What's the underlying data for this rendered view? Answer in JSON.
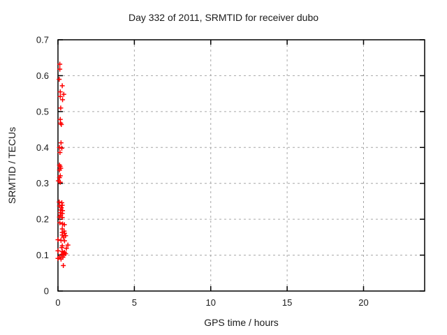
{
  "chart_data": {
    "type": "scatter",
    "title": "Day 332 of 2011, SRMTID for receiver dubo",
    "xlabel": "GPS time / hours",
    "ylabel": "SRMTID / TECUs",
    "xlim": [
      0,
      24
    ],
    "ylim": [
      0,
      0.7
    ],
    "xticks": {
      "values": [
        0,
        5,
        10,
        15,
        20
      ],
      "labels": [
        "0",
        "5",
        "10",
        "15",
        "20"
      ]
    },
    "yticks": {
      "values": [
        0,
        0.1,
        0.2,
        0.3,
        0.4,
        0.5,
        0.6,
        0.7
      ],
      "labels": [
        "0",
        "0.1",
        "0.2",
        "0.3",
        "0.4",
        "0.5",
        "0.6",
        "0.7"
      ]
    },
    "grid": true,
    "legend": "none",
    "marker": {
      "shape": "plus",
      "color": "#ff0000",
      "size": 7
    },
    "series": [
      {
        "name": "SRMTID",
        "points": [
          [
            0.12,
            0.632
          ],
          [
            0.12,
            0.618
          ],
          [
            0.08,
            0.59
          ],
          [
            0.28,
            0.572
          ],
          [
            0.15,
            0.555
          ],
          [
            0.38,
            0.548
          ],
          [
            0.15,
            0.542
          ],
          [
            0.3,
            0.533
          ],
          [
            0.18,
            0.51
          ],
          [
            0.15,
            0.478
          ],
          [
            0.17,
            0.468
          ],
          [
            0.22,
            0.464
          ],
          [
            0.2,
            0.413
          ],
          [
            0.1,
            0.4
          ],
          [
            0.25,
            0.398
          ],
          [
            0.13,
            0.386
          ],
          [
            0.1,
            0.351
          ],
          [
            0.14,
            0.347
          ],
          [
            0.18,
            0.342
          ],
          [
            0.1,
            0.337
          ],
          [
            0.15,
            0.321
          ],
          [
            0.1,
            0.316
          ],
          [
            0.03,
            0.307
          ],
          [
            0.15,
            0.303
          ],
          [
            0.08,
            0.248
          ],
          [
            0.25,
            0.246
          ],
          [
            0.28,
            0.239
          ],
          [
            0.1,
            0.237
          ],
          [
            0.22,
            0.232
          ],
          [
            0.18,
            0.226
          ],
          [
            0.3,
            0.224
          ],
          [
            0.15,
            0.218
          ],
          [
            0.28,
            0.216
          ],
          [
            0.18,
            0.211
          ],
          [
            0.1,
            0.206
          ],
          [
            0.28,
            0.205
          ],
          [
            0.12,
            0.19
          ],
          [
            0.3,
            0.187
          ],
          [
            0.42,
            0.185
          ],
          [
            0.28,
            0.173
          ],
          [
            0.4,
            0.167
          ],
          [
            0.28,
            0.163
          ],
          [
            0.43,
            0.161
          ],
          [
            0.28,
            0.156
          ],
          [
            0.5,
            0.154
          ],
          [
            0.35,
            0.15
          ],
          [
            0.0,
            0.143
          ],
          [
            0.2,
            0.141
          ],
          [
            0.43,
            0.14
          ],
          [
            0.65,
            0.128
          ],
          [
            0.28,
            0.126
          ],
          [
            0.25,
            0.121
          ],
          [
            0.55,
            0.119
          ],
          [
            0.0,
            0.112
          ],
          [
            0.28,
            0.11
          ],
          [
            0.43,
            0.108
          ],
          [
            0.35,
            0.106
          ],
          [
            0.5,
            0.104
          ],
          [
            0.25,
            0.102
          ],
          [
            0.4,
            0.101
          ],
          [
            0.12,
            0.095
          ],
          [
            0.32,
            0.094
          ],
          [
            0.0,
            0.091
          ],
          [
            0.2,
            0.089
          ],
          [
            0.35,
            0.071
          ]
        ]
      }
    ]
  },
  "colors": {
    "background": "#ffffff",
    "border": "#000000",
    "grid": "#a6a6a6",
    "text": "#1a1a1a",
    "marker": "#ff0000"
  }
}
